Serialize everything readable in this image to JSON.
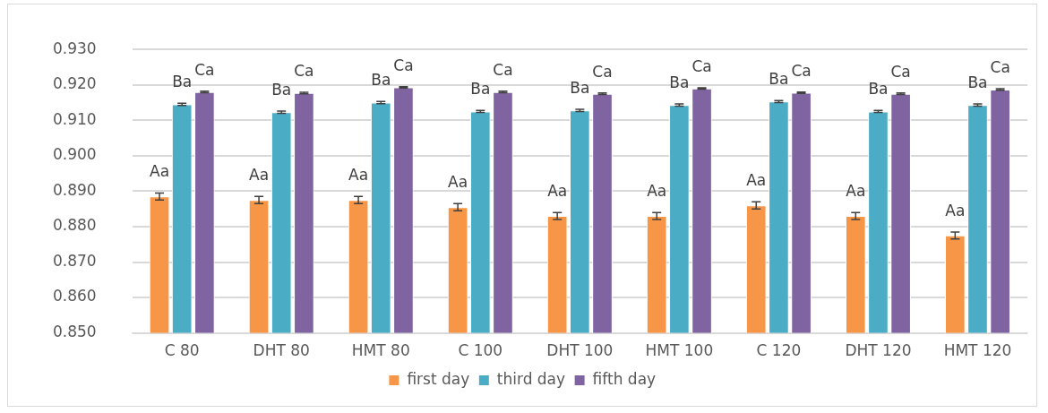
{
  "chart_data": {
    "type": "bar",
    "categories": [
      "C 80",
      "DHT 80",
      "HMT 80",
      "C 100",
      "DHT 100",
      "HMT 100",
      "C 120",
      "DHT 120",
      "HMT 120"
    ],
    "series": [
      {
        "name": "first day",
        "color": "#f79646",
        "values": [
          0.8885,
          0.8875,
          0.8875,
          0.8855,
          0.883,
          0.883,
          0.886,
          0.883,
          0.8775
        ],
        "errors": [
          0.001,
          0.001,
          0.001,
          0.001,
          0.001,
          0.001,
          0.001,
          0.001,
          0.001
        ],
        "value_labels": [
          "Aa",
          "Aa",
          "Aa",
          "Aa",
          "Aa",
          "Aa",
          "Aa",
          "Aa",
          "Aa"
        ]
      },
      {
        "name": "third day",
        "color": "#4bacc6",
        "values": [
          0.9145,
          0.9123,
          0.915,
          0.9125,
          0.9128,
          0.9143,
          0.9153,
          0.9125,
          0.9143
        ],
        "errors": [
          0.0003,
          0.0003,
          0.0003,
          0.0003,
          0.0003,
          0.0003,
          0.0003,
          0.0003,
          0.0003
        ],
        "value_labels": [
          "Ba",
          "Ba",
          "Ba",
          "Ba",
          "Ba",
          "Ba",
          "Ba",
          "Ba",
          "Ba"
        ]
      },
      {
        "name": "fifth day",
        "color": "#8064a2",
        "values": [
          0.918,
          0.9177,
          0.9193,
          0.918,
          0.9175,
          0.919,
          0.9178,
          0.9175,
          0.9187
        ],
        "errors": [
          0.0002,
          0.0002,
          0.0002,
          0.0002,
          0.0002,
          0.0002,
          0.0002,
          0.0002,
          0.0002
        ],
        "value_labels": [
          "Ca",
          "Ca",
          "Ca",
          "Ca",
          "Ca",
          "Ca",
          "Ca",
          "Ca",
          "Ca"
        ]
      }
    ],
    "ylim": [
      0.85,
      0.93
    ],
    "yticks": [
      {
        "value": 0.85,
        "label": "0.850"
      },
      {
        "value": 0.86,
        "label": "0.860"
      },
      {
        "value": 0.87,
        "label": "0.870"
      },
      {
        "value": 0.88,
        "label": "0.880"
      },
      {
        "value": 0.89,
        "label": "0.890"
      },
      {
        "value": 0.9,
        "label": "0.900"
      },
      {
        "value": 0.91,
        "label": "0.910"
      },
      {
        "value": 0.92,
        "label": "0.920"
      },
      {
        "value": 0.93,
        "label": "0.930"
      }
    ],
    "grid": "y",
    "legend": "bottom"
  }
}
